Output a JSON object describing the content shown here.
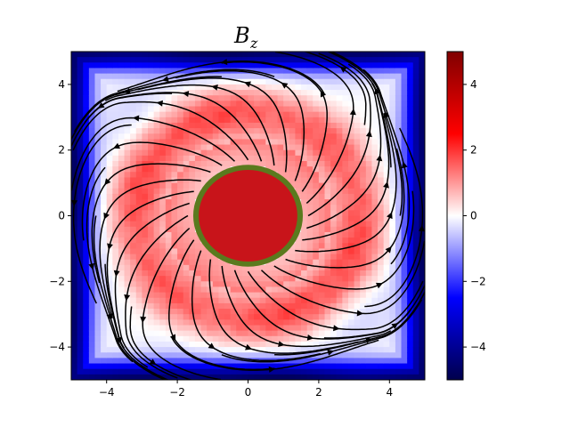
{
  "chart_data": {
    "type": "heatmap",
    "title": "B",
    "title_subscript": "z",
    "xlabel": "",
    "ylabel": "",
    "xlim": [
      -5,
      5
    ],
    "ylim": [
      -5,
      5
    ],
    "x_ticks": [
      -4,
      -2,
      0,
      2,
      4
    ],
    "y_ticks": [
      -4,
      -2,
      0,
      2,
      4
    ],
    "x_tick_labels": [
      "−4",
      "−2",
      "0",
      "2",
      "4"
    ],
    "y_tick_labels": [
      "−4",
      "−2",
      "0",
      "2",
      "4"
    ],
    "grid": false,
    "colormap": "seismic",
    "color_range": [
      -5,
      5
    ],
    "colorbar": {
      "ticks": [
        4,
        2,
        0,
        -2,
        -4
      ],
      "tick_labels": [
        "4",
        "2",
        "0",
        "−2",
        "−4"
      ]
    },
    "field_description": "Bz positive (~2) in a ring band around the center, strongly negative (~-3 to -5) near the square boundary, saturated positive (~5) inside central disk",
    "ring_band_radius": 3.2,
    "ring_band_value": 2.2,
    "edge_value": -4.5,
    "center_disk": {
      "cx": 0,
      "cy": 0,
      "r": 1.55,
      "value": 5,
      "fill_color": "#c8141a",
      "edge_color": "#5a7a1e"
    },
    "streamlines": {
      "color": "#000000",
      "pattern": "swirling radial outflow with corner vortices"
    }
  }
}
